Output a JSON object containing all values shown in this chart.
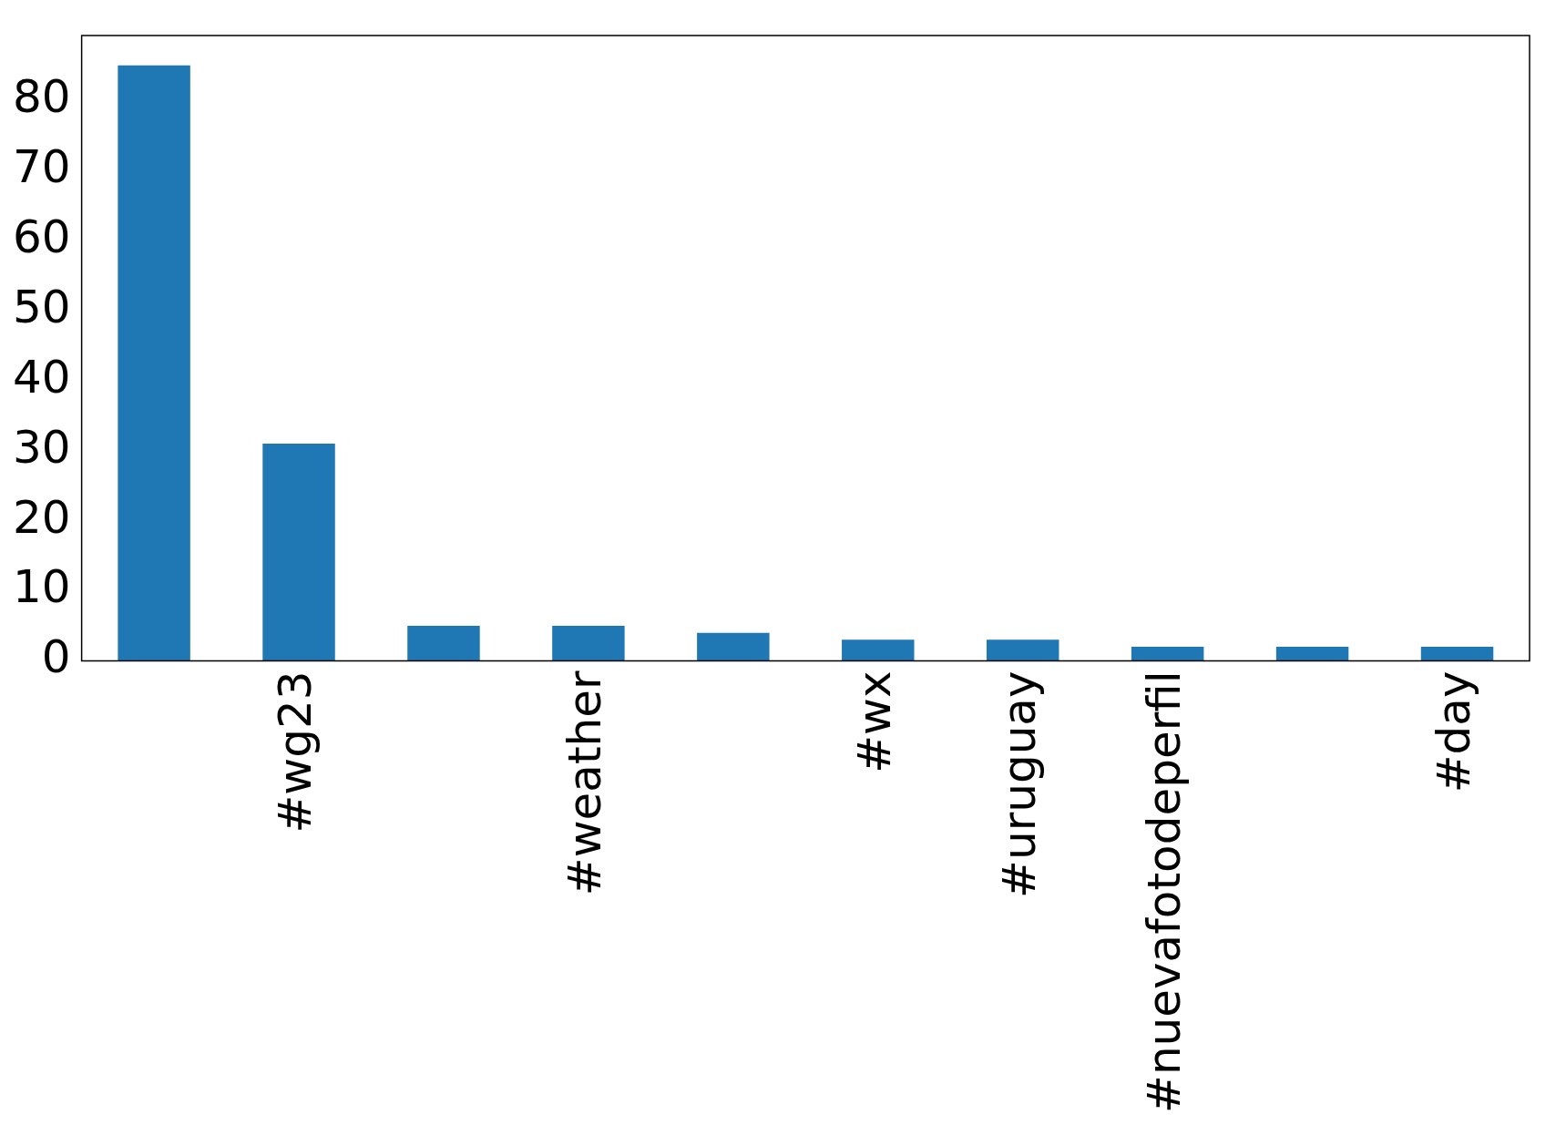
{
  "chart_data": {
    "type": "bar",
    "categories": [
      null,
      "#wg23",
      null,
      "#weather",
      null,
      "#wx",
      "#uruguay",
      "#nuevafotodeperfil",
      null,
      "#day"
    ],
    "values": [
      85,
      31,
      5,
      5,
      4,
      3,
      3,
      2,
      2,
      2
    ],
    "color": "#1f77b4",
    "ylim": [
      0,
      89.25
    ],
    "yticks": [
      0,
      10,
      20,
      30,
      40,
      50,
      60,
      70,
      80
    ],
    "grid": false,
    "legend": false
  }
}
